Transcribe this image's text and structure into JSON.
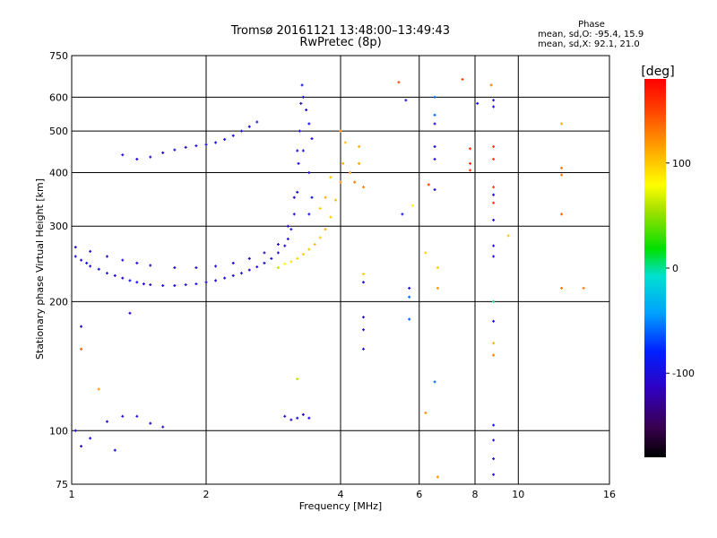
{
  "title": {
    "line1": "Tromsø 20161121 13:48:00–13:49:43",
    "line2": "RwPretec (8p)"
  },
  "phase_info": {
    "title": "Phase",
    "line_o": "mean, sd,O: -95.4, 15.9",
    "line_x": "mean, sd,X:  92.1, 21.0"
  },
  "colorbar": {
    "unit": "[deg]",
    "ticks": [
      {
        "value": 100,
        "label": "100"
      },
      {
        "value": 0,
        "label": "0"
      },
      {
        "value": -100,
        "label": "-100"
      }
    ],
    "range": [
      -180,
      180
    ]
  },
  "chart_data": {
    "type": "scatter",
    "title": "Tromsø 20161121 13:48:00–13:49:43",
    "subtitle": "RwPretec (8p)",
    "xlabel": "Frequency [MHz]",
    "ylabel": "Stationary phase Virtual Height [km]",
    "xscale": "log",
    "yscale": "log",
    "xlim": [
      1,
      16
    ],
    "ylim": [
      75,
      750
    ],
    "xticks": [
      {
        "value": 1,
        "label": "1"
      },
      {
        "value": 2,
        "label": "2"
      },
      {
        "value": 4,
        "label": "4"
      },
      {
        "value": 6,
        "label": "6"
      },
      {
        "value": 8,
        "label": "8"
      },
      {
        "value": 10,
        "label": "10"
      },
      {
        "value": 16,
        "label": "16"
      }
    ],
    "yticks": [
      {
        "value": 75,
        "label": "75"
      },
      {
        "value": 100,
        "label": "100"
      },
      {
        "value": 200,
        "label": "200"
      },
      {
        "value": 300,
        "label": "300"
      },
      {
        "value": 400,
        "label": "400"
      },
      {
        "value": 500,
        "label": "500"
      },
      {
        "value": 600,
        "label": "600"
      },
      {
        "value": 750,
        "label": "750"
      }
    ],
    "grid": true,
    "colorscale": "rainbow phase [deg], -180 to 180",
    "series": [
      {
        "points": [
          {
            "x": 1.02,
            "y": 255,
            "phase": -100
          },
          {
            "x": 1.05,
            "y": 250,
            "phase": -105
          },
          {
            "x": 1.08,
            "y": 246,
            "phase": -98
          },
          {
            "x": 1.1,
            "y": 242,
            "phase": -110
          },
          {
            "x": 1.15,
            "y": 238,
            "phase": -100
          },
          {
            "x": 1.2,
            "y": 233,
            "phase": -95
          },
          {
            "x": 1.25,
            "y": 230,
            "phase": -102
          },
          {
            "x": 1.3,
            "y": 227,
            "phase": -108
          },
          {
            "x": 1.35,
            "y": 224,
            "phase": -100
          },
          {
            "x": 1.4,
            "y": 222,
            "phase": -96
          },
          {
            "x": 1.45,
            "y": 220,
            "phase": -104
          },
          {
            "x": 1.5,
            "y": 219,
            "phase": -100
          },
          {
            "x": 1.6,
            "y": 218,
            "phase": -98
          },
          {
            "x": 1.7,
            "y": 218,
            "phase": -102
          },
          {
            "x": 1.8,
            "y": 219,
            "phase": -100
          },
          {
            "x": 1.9,
            "y": 220,
            "phase": -97
          },
          {
            "x": 2.0,
            "y": 222,
            "phase": -100
          },
          {
            "x": 2.1,
            "y": 224,
            "phase": -103
          },
          {
            "x": 2.2,
            "y": 227,
            "phase": -99
          },
          {
            "x": 2.3,
            "y": 230,
            "phase": -100
          },
          {
            "x": 2.4,
            "y": 233,
            "phase": -96
          },
          {
            "x": 2.5,
            "y": 237,
            "phase": -100
          },
          {
            "x": 2.6,
            "y": 241,
            "phase": -104
          },
          {
            "x": 2.7,
            "y": 246,
            "phase": -100
          },
          {
            "x": 2.8,
            "y": 252,
            "phase": -98
          },
          {
            "x": 2.9,
            "y": 260,
            "phase": -100
          },
          {
            "x": 3.0,
            "y": 270,
            "phase": -102
          },
          {
            "x": 3.05,
            "y": 280,
            "phase": -100
          },
          {
            "x": 3.1,
            "y": 295,
            "phase": -99
          },
          {
            "x": 3.15,
            "y": 320,
            "phase": -100
          },
          {
            "x": 3.2,
            "y": 360,
            "phase": -101
          },
          {
            "x": 3.22,
            "y": 420,
            "phase": -100
          },
          {
            "x": 3.24,
            "y": 500,
            "phase": -100
          },
          {
            "x": 3.26,
            "y": 580,
            "phase": -98
          },
          {
            "x": 3.28,
            "y": 640,
            "phase": -100
          },
          {
            "x": 1.02,
            "y": 268,
            "phase": -112
          },
          {
            "x": 1.1,
            "y": 262,
            "phase": -108
          },
          {
            "x": 1.2,
            "y": 255,
            "phase": -110
          },
          {
            "x": 1.3,
            "y": 250,
            "phase": -112
          },
          {
            "x": 1.4,
            "y": 246,
            "phase": -109
          },
          {
            "x": 1.5,
            "y": 243,
            "phase": -111
          },
          {
            "x": 1.7,
            "y": 240,
            "phase": -110
          },
          {
            "x": 1.9,
            "y": 240,
            "phase": -112
          },
          {
            "x": 2.1,
            "y": 242,
            "phase": -108
          },
          {
            "x": 2.3,
            "y": 246,
            "phase": -110
          },
          {
            "x": 2.5,
            "y": 252,
            "phase": -112
          },
          {
            "x": 2.7,
            "y": 260,
            "phase": -110
          },
          {
            "x": 2.9,
            "y": 272,
            "phase": -108
          },
          {
            "x": 3.05,
            "y": 300,
            "phase": -110
          },
          {
            "x": 3.15,
            "y": 350,
            "phase": -112
          },
          {
            "x": 3.2,
            "y": 450,
            "phase": -110
          },
          {
            "x": 1.3,
            "y": 440,
            "phase": -110
          },
          {
            "x": 1.4,
            "y": 430,
            "phase": -108
          },
          {
            "x": 1.5,
            "y": 435,
            "phase": -105
          },
          {
            "x": 1.6,
            "y": 445,
            "phase": -110
          },
          {
            "x": 1.7,
            "y": 452,
            "phase": -100
          },
          {
            "x": 1.8,
            "y": 458,
            "phase": -105
          },
          {
            "x": 1.9,
            "y": 462,
            "phase": -100
          },
          {
            "x": 2.0,
            "y": 465,
            "phase": -98
          },
          {
            "x": 2.1,
            "y": 470,
            "phase": -100
          },
          {
            "x": 2.2,
            "y": 478,
            "phase": -102
          },
          {
            "x": 2.3,
            "y": 488,
            "phase": -100
          },
          {
            "x": 2.4,
            "y": 500,
            "phase": -100
          },
          {
            "x": 2.5,
            "y": 512,
            "phase": -98
          },
          {
            "x": 2.6,
            "y": 525,
            "phase": -100
          },
          {
            "x": 3.3,
            "y": 600,
            "phase": -100
          },
          {
            "x": 3.35,
            "y": 560,
            "phase": -102
          },
          {
            "x": 3.4,
            "y": 520,
            "phase": -98
          },
          {
            "x": 3.45,
            "y": 480,
            "phase": -100
          },
          {
            "x": 3.3,
            "y": 450,
            "phase": -100
          },
          {
            "x": 3.4,
            "y": 400,
            "phase": -102
          },
          {
            "x": 3.45,
            "y": 350,
            "phase": -100
          },
          {
            "x": 3.4,
            "y": 320,
            "phase": -99
          },
          {
            "x": 2.9,
            "y": 240,
            "phase": 60
          },
          {
            "x": 3.0,
            "y": 245,
            "phase": 80
          },
          {
            "x": 3.1,
            "y": 248,
            "phase": 90
          },
          {
            "x": 3.2,
            "y": 252,
            "phase": 95
          },
          {
            "x": 3.3,
            "y": 258,
            "phase": 100
          },
          {
            "x": 3.4,
            "y": 265,
            "phase": 100
          },
          {
            "x": 3.5,
            "y": 272,
            "phase": 105
          },
          {
            "x": 3.6,
            "y": 282,
            "phase": 100
          },
          {
            "x": 3.7,
            "y": 295,
            "phase": 110
          },
          {
            "x": 3.8,
            "y": 315,
            "phase": 100
          },
          {
            "x": 3.9,
            "y": 345,
            "phase": 105
          },
          {
            "x": 4.0,
            "y": 380,
            "phase": 120
          },
          {
            "x": 4.05,
            "y": 420,
            "phase": 110
          },
          {
            "x": 4.1,
            "y": 470,
            "phase": 100
          },
          {
            "x": 3.8,
            "y": 390,
            "phase": 100
          },
          {
            "x": 3.7,
            "y": 350,
            "phase": 110
          },
          {
            "x": 3.6,
            "y": 330,
            "phase": 100
          },
          {
            "x": 4.2,
            "y": 400,
            "phase": 120
          },
          {
            "x": 4.3,
            "y": 380,
            "phase": 130
          },
          {
            "x": 4.4,
            "y": 420,
            "phase": 115
          },
          {
            "x": 4.5,
            "y": 370,
            "phase": 130
          },
          {
            "x": 4.0,
            "y": 500,
            "phase": 120
          },
          {
            "x": 4.4,
            "y": 460,
            "phase": 110
          },
          {
            "x": 1.02,
            "y": 100,
            "phase": -100
          },
          {
            "x": 1.05,
            "y": 92,
            "phase": -110
          },
          {
            "x": 1.1,
            "y": 96,
            "phase": -100
          },
          {
            "x": 1.2,
            "y": 105,
            "phase": -100
          },
          {
            "x": 1.3,
            "y": 108,
            "phase": -110
          },
          {
            "x": 1.4,
            "y": 108,
            "phase": -100
          },
          {
            "x": 1.5,
            "y": 104,
            "phase": -100
          },
          {
            "x": 1.6,
            "y": 102,
            "phase": -110
          },
          {
            "x": 3.0,
            "y": 108,
            "phase": -100
          },
          {
            "x": 3.1,
            "y": 106,
            "phase": -110
          },
          {
            "x": 3.2,
            "y": 107,
            "phase": -100
          },
          {
            "x": 3.3,
            "y": 109,
            "phase": -110
          },
          {
            "x": 3.4,
            "y": 107,
            "phase": -100
          },
          {
            "x": 1.05,
            "y": 175,
            "phase": -110
          },
          {
            "x": 1.35,
            "y": 188,
            "phase": -120
          },
          {
            "x": 1.05,
            "y": 155,
            "phase": 140
          },
          {
            "x": 1.15,
            "y": 125,
            "phase": 120
          },
          {
            "x": 3.2,
            "y": 132,
            "phase": 60
          },
          {
            "x": 1.25,
            "y": 90,
            "phase": -100
          },
          {
            "x": 4.5,
            "y": 222,
            "phase": -100
          },
          {
            "x": 4.5,
            "y": 184,
            "phase": -110
          },
          {
            "x": 4.5,
            "y": 172,
            "phase": -100
          },
          {
            "x": 4.5,
            "y": 155,
            "phase": -100
          },
          {
            "x": 4.5,
            "y": 232,
            "phase": 100
          },
          {
            "x": 5.4,
            "y": 650,
            "phase": 150
          },
          {
            "x": 5.6,
            "y": 590,
            "phase": -100
          },
          {
            "x": 5.5,
            "y": 320,
            "phase": -100
          },
          {
            "x": 5.7,
            "y": 215,
            "phase": -100
          },
          {
            "x": 5.7,
            "y": 205,
            "phase": -60
          },
          {
            "x": 5.7,
            "y": 182,
            "phase": -60
          },
          {
            "x": 5.8,
            "y": 335,
            "phase": 80
          },
          {
            "x": 6.3,
            "y": 375,
            "phase": 150
          },
          {
            "x": 6.2,
            "y": 110,
            "phase": 120
          },
          {
            "x": 6.2,
            "y": 260,
            "phase": 100
          },
          {
            "x": 6.5,
            "y": 365,
            "phase": -100
          },
          {
            "x": 6.5,
            "y": 545,
            "phase": -60
          },
          {
            "x": 6.5,
            "y": 520,
            "phase": -100
          },
          {
            "x": 6.5,
            "y": 460,
            "phase": -100
          },
          {
            "x": 6.5,
            "y": 430,
            "phase": -100
          },
          {
            "x": 6.5,
            "y": 600,
            "phase": -60
          },
          {
            "x": 6.6,
            "y": 240,
            "phase": 100
          },
          {
            "x": 6.6,
            "y": 215,
            "phase": 120
          },
          {
            "x": 6.5,
            "y": 130,
            "phase": -60
          },
          {
            "x": 6.6,
            "y": 78,
            "phase": 120
          },
          {
            "x": 7.5,
            "y": 660,
            "phase": 150
          },
          {
            "x": 7.8,
            "y": 455,
            "phase": 160
          },
          {
            "x": 7.8,
            "y": 420,
            "phase": 160
          },
          {
            "x": 7.8,
            "y": 405,
            "phase": 155
          },
          {
            "x": 8.1,
            "y": 580,
            "phase": -100
          },
          {
            "x": 8.7,
            "y": 640,
            "phase": 130
          },
          {
            "x": 8.8,
            "y": 590,
            "phase": -100
          },
          {
            "x": 8.8,
            "y": 570,
            "phase": -100
          },
          {
            "x": 8.8,
            "y": 460,
            "phase": 150
          },
          {
            "x": 8.8,
            "y": 430,
            "phase": 150
          },
          {
            "x": 8.8,
            "y": 370,
            "phase": 155
          },
          {
            "x": 8.8,
            "y": 355,
            "phase": -100
          },
          {
            "x": 8.8,
            "y": 340,
            "phase": 155
          },
          {
            "x": 8.8,
            "y": 310,
            "phase": -100
          },
          {
            "x": 8.8,
            "y": 270,
            "phase": -100
          },
          {
            "x": 8.8,
            "y": 255,
            "phase": -100
          },
          {
            "x": 8.8,
            "y": 200,
            "phase": 0
          },
          {
            "x": 8.8,
            "y": 180,
            "phase": -100
          },
          {
            "x": 8.8,
            "y": 160,
            "phase": 110
          },
          {
            "x": 8.8,
            "y": 150,
            "phase": 130
          },
          {
            "x": 8.8,
            "y": 103,
            "phase": -80
          },
          {
            "x": 8.8,
            "y": 95,
            "phase": -100
          },
          {
            "x": 8.8,
            "y": 86,
            "phase": -100
          },
          {
            "x": 8.8,
            "y": 79,
            "phase": -100
          },
          {
            "x": 9.5,
            "y": 285,
            "phase": 100
          },
          {
            "x": 12.5,
            "y": 520,
            "phase": 110
          },
          {
            "x": 12.5,
            "y": 410,
            "phase": 130
          },
          {
            "x": 12.5,
            "y": 395,
            "phase": 130
          },
          {
            "x": 12.5,
            "y": 320,
            "phase": 140
          },
          {
            "x": 12.5,
            "y": 215,
            "phase": 130
          },
          {
            "x": 14.0,
            "y": 215,
            "phase": 130
          }
        ]
      }
    ]
  }
}
